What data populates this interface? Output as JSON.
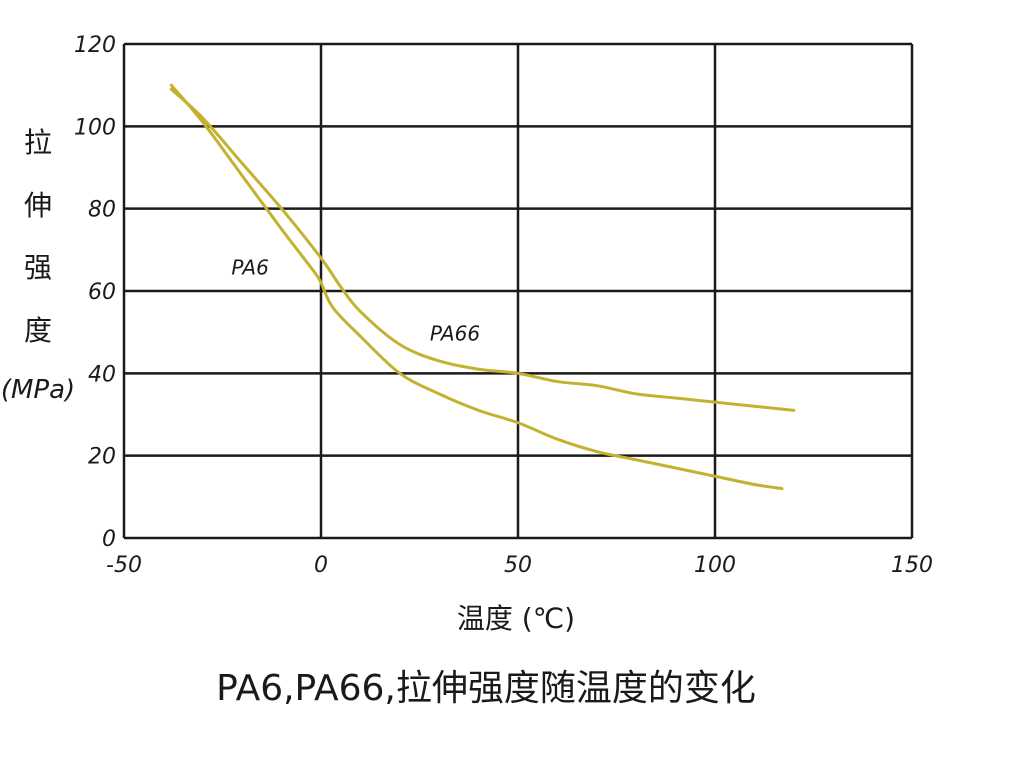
{
  "chart_data": {
    "type": "line",
    "title": "PA6,PA66,拉伸强度随温度的变化",
    "xlabel": "温度 (℃)",
    "ylabel_chars": [
      "拉",
      "伸",
      "强",
      "度"
    ],
    "ylabel_unit": "(MPa)",
    "xlim": [
      -50,
      150
    ],
    "ylim": [
      0,
      120
    ],
    "x_ticks": [
      -50,
      0,
      50,
      100,
      150
    ],
    "y_ticks": [
      0,
      20,
      40,
      60,
      80,
      100,
      120
    ],
    "x_tick_labels": [
      "-50",
      "0",
      "50",
      "100",
      "150"
    ],
    "y_tick_labels": [
      "0",
      "20",
      "40",
      "60",
      "80",
      "100",
      "120"
    ],
    "grid": true,
    "line_color": "#c3b230",
    "series": [
      {
        "name": "PA6",
        "x": [
          -38,
          -30,
          -20,
          -10,
          -2,
          0,
          3,
          10,
          20,
          30,
          40,
          50,
          60,
          70,
          80,
          90,
          100,
          110,
          117
        ],
        "y": [
          110,
          101,
          88,
          75,
          65,
          62,
          56,
          49,
          40,
          35,
          31,
          28,
          24,
          21,
          19,
          17,
          15,
          13,
          12
        ]
      },
      {
        "name": "PA66",
        "x": [
          -38,
          -30,
          -20,
          -10,
          0,
          5,
          10,
          20,
          30,
          40,
          50,
          60,
          70,
          80,
          90,
          100,
          110,
          120
        ],
        "y": [
          109,
          102,
          91,
          80,
          68,
          61,
          55,
          47,
          43,
          41,
          40,
          38,
          37,
          35,
          34,
          33,
          32,
          31
        ]
      }
    ],
    "annotations": [
      {
        "text": "PA6",
        "x": -18,
        "y": 64
      },
      {
        "text": "PA66",
        "x": 34,
        "y": 48
      }
    ]
  }
}
